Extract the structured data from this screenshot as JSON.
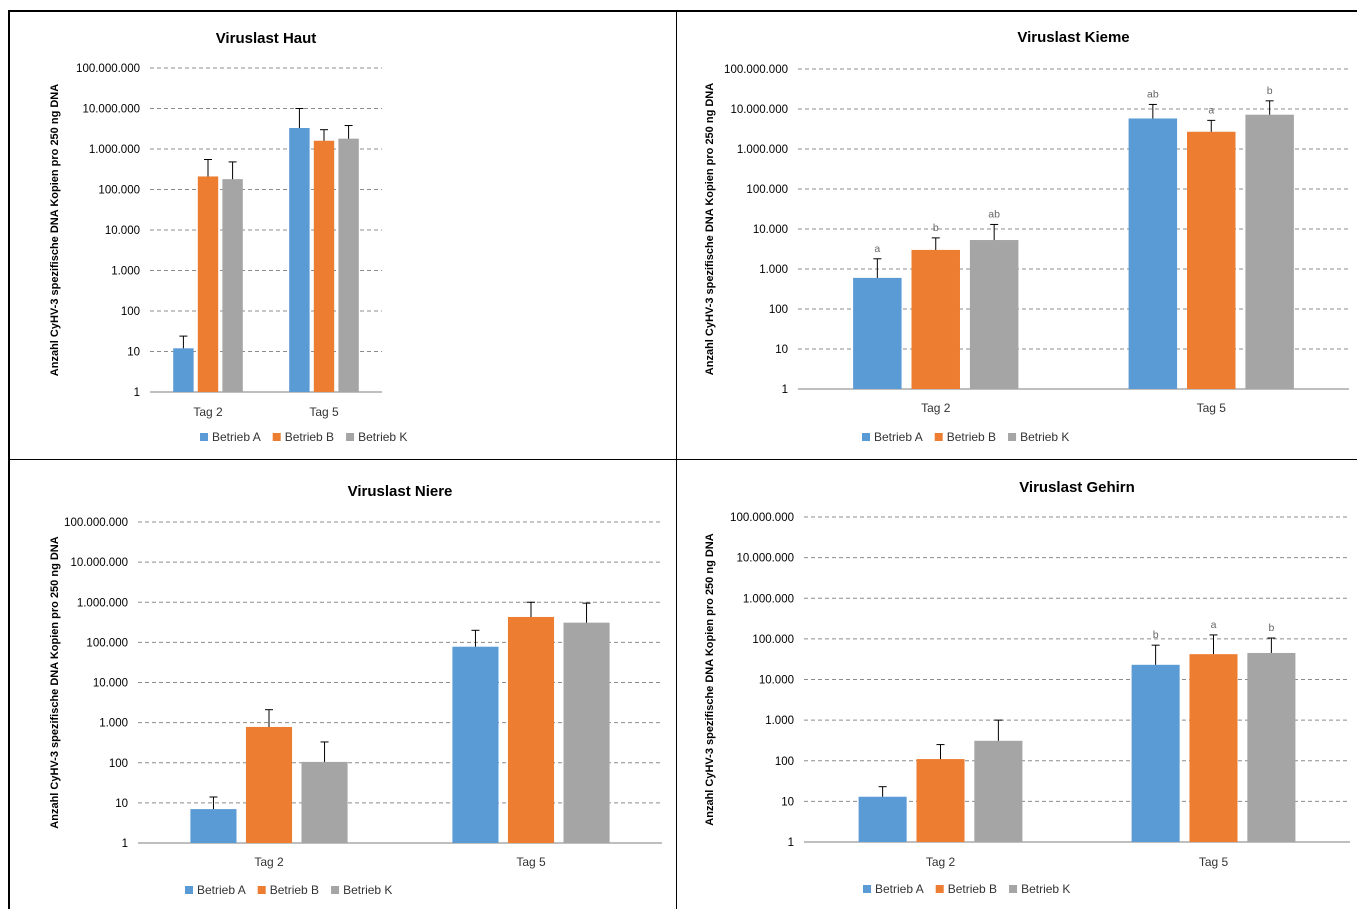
{
  "colors": {
    "series": [
      "#5b9bd5",
      "#ed7d31",
      "#a5a5a5"
    ],
    "grid": "#8c8c8c",
    "axis": "#000000"
  },
  "chart_data": [
    {
      "type": "bar",
      "title": "Viruslast Haut",
      "ylabel": "Anzahl CyHV-3 spezifische DNA Kopien pro 250 ng DNA",
      "yscale": "log",
      "ylim": [
        1,
        100000000
      ],
      "yticks": [
        "1",
        "10",
        "100",
        "1.000",
        "10.000",
        "100.000",
        "1.000.000",
        "10.000.000",
        "100.000.000"
      ],
      "grid": true,
      "legend_position": "bottom",
      "categories": [
        "Tag 2",
        "Tag 5"
      ],
      "series": [
        {
          "name": "Betrieb A",
          "values": [
            12,
            3300000
          ],
          "error_upper": [
            24,
            10000000
          ],
          "labels": [
            "",
            ""
          ]
        },
        {
          "name": "Betrieb B",
          "values": [
            210000,
            1600000
          ],
          "error_upper": [
            550000,
            3000000
          ],
          "labels": [
            "",
            ""
          ]
        },
        {
          "name": "Betrieb K",
          "values": [
            180000,
            1800000
          ],
          "error_upper": [
            480000,
            3800000
          ],
          "labels": [
            "",
            ""
          ]
        }
      ]
    },
    {
      "type": "bar",
      "title": "Viruslast Kieme",
      "ylabel": "Anzahl CyHV-3 spezifische DNA Kopien pro 250 ng DNA",
      "yscale": "log",
      "ylim": [
        1,
        100000000
      ],
      "yticks": [
        "1",
        "10",
        "100",
        "1.000",
        "10.000",
        "100.000",
        "1.000.000",
        "10.000.000",
        "100.000.000"
      ],
      "grid": true,
      "legend_position": "bottom",
      "categories": [
        "Tag 2",
        "Tag 5"
      ],
      "series": [
        {
          "name": "Betrieb A",
          "values": [
            600,
            5800000
          ],
          "error_upper": [
            1800,
            13000000
          ],
          "labels": [
            "a",
            "ab"
          ]
        },
        {
          "name": "Betrieb B",
          "values": [
            3000,
            2700000
          ],
          "error_upper": [
            6000,
            5200000
          ],
          "labels": [
            "b",
            "a"
          ]
        },
        {
          "name": "Betrieb K",
          "values": [
            5300,
            7200000
          ],
          "error_upper": [
            13000,
            16000000
          ],
          "labels": [
            "ab",
            "b"
          ]
        }
      ]
    },
    {
      "type": "bar",
      "title": "Viruslast Niere",
      "ylabel": "Anzahl CyHV-3 spezifische DNA Kopien pro 250 ng DNA",
      "yscale": "log",
      "ylim": [
        1,
        100000000
      ],
      "yticks": [
        "1",
        "10",
        "100",
        "1.000",
        "10.000",
        "100.000",
        "1.000.000",
        "10.000.000",
        "100.000.000"
      ],
      "grid": true,
      "legend_position": "bottom",
      "categories": [
        "Tag 2",
        "Tag 5"
      ],
      "series": [
        {
          "name": "Betrieb A",
          "values": [
            7,
            78000
          ],
          "error_upper": [
            14,
            200000
          ],
          "labels": [
            "",
            ""
          ]
        },
        {
          "name": "Betrieb B",
          "values": [
            780,
            430000
          ],
          "error_upper": [
            2100,
            1000000
          ],
          "labels": [
            "",
            ""
          ]
        },
        {
          "name": "Betrieb K",
          "values": [
            105,
            310000
          ],
          "error_upper": [
            330,
            950000
          ],
          "labels": [
            "",
            ""
          ]
        }
      ]
    },
    {
      "type": "bar",
      "title": "Viruslast Gehirn",
      "ylabel": "Anzahl CyHV-3 spezifische DNA Kopien pro 250 ng DNA",
      "yscale": "log",
      "ylim": [
        1,
        100000000
      ],
      "yticks": [
        "1",
        "10",
        "100",
        "1.000",
        "10.000",
        "100.000",
        "1.000.000",
        "10.000.000",
        "100.000.000"
      ],
      "grid": true,
      "legend_position": "bottom",
      "categories": [
        "Tag 2",
        "Tag 5"
      ],
      "series": [
        {
          "name": "Betrieb A",
          "values": [
            13,
            23000
          ],
          "error_upper": [
            23,
            70000
          ],
          "labels": [
            "",
            "b"
          ]
        },
        {
          "name": "Betrieb B",
          "values": [
            110,
            42000
          ],
          "error_upper": [
            250,
            125000
          ],
          "labels": [
            "",
            "a"
          ]
        },
        {
          "name": "Betrieb K",
          "values": [
            310,
            45000
          ],
          "error_upper": [
            1000,
            105000
          ],
          "labels": [
            "",
            "b"
          ]
        }
      ]
    }
  ]
}
